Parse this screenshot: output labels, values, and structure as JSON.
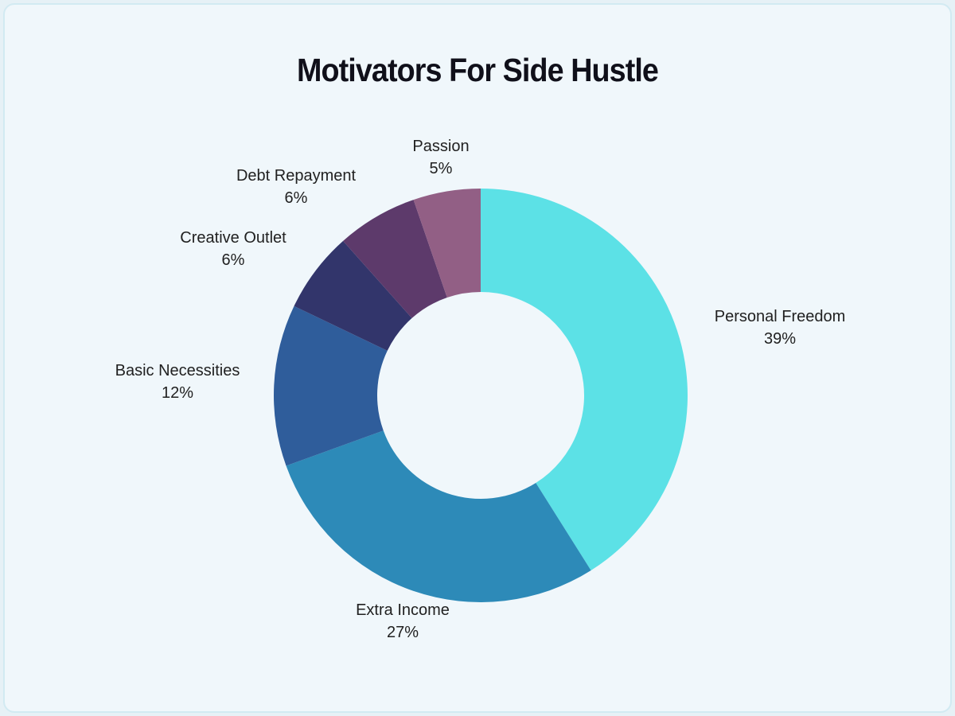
{
  "header": {
    "title": "Motivators For Side Hustle"
  },
  "chart_data": {
    "type": "pie",
    "subtype": "donut",
    "title": "Motivators For Side Hustle",
    "donut_hole_ratio": 0.5,
    "start_angle_deg": 0,
    "direction": "clockwise",
    "legend_position": "labels-outside",
    "label_format": "name + percent",
    "slices": [
      {
        "label": "Personal Freedom",
        "value": 39,
        "pct_label": "39%",
        "color": "#5CE1E6"
      },
      {
        "label": "Extra Income",
        "value": 27,
        "pct_label": "27%",
        "color": "#2D8AB8"
      },
      {
        "label": "Basic Necessities",
        "value": 12,
        "pct_label": "12%",
        "color": "#2F5D9B"
      },
      {
        "label": "Creative Outlet",
        "value": 6,
        "pct_label": "6%",
        "color": "#32356B"
      },
      {
        "label": "Debt Repayment",
        "value": 6,
        "pct_label": "6%",
        "color": "#5D3A6B"
      },
      {
        "label": "Passion",
        "value": 5,
        "pct_label": "5%",
        "color": "#925F85"
      }
    ]
  }
}
